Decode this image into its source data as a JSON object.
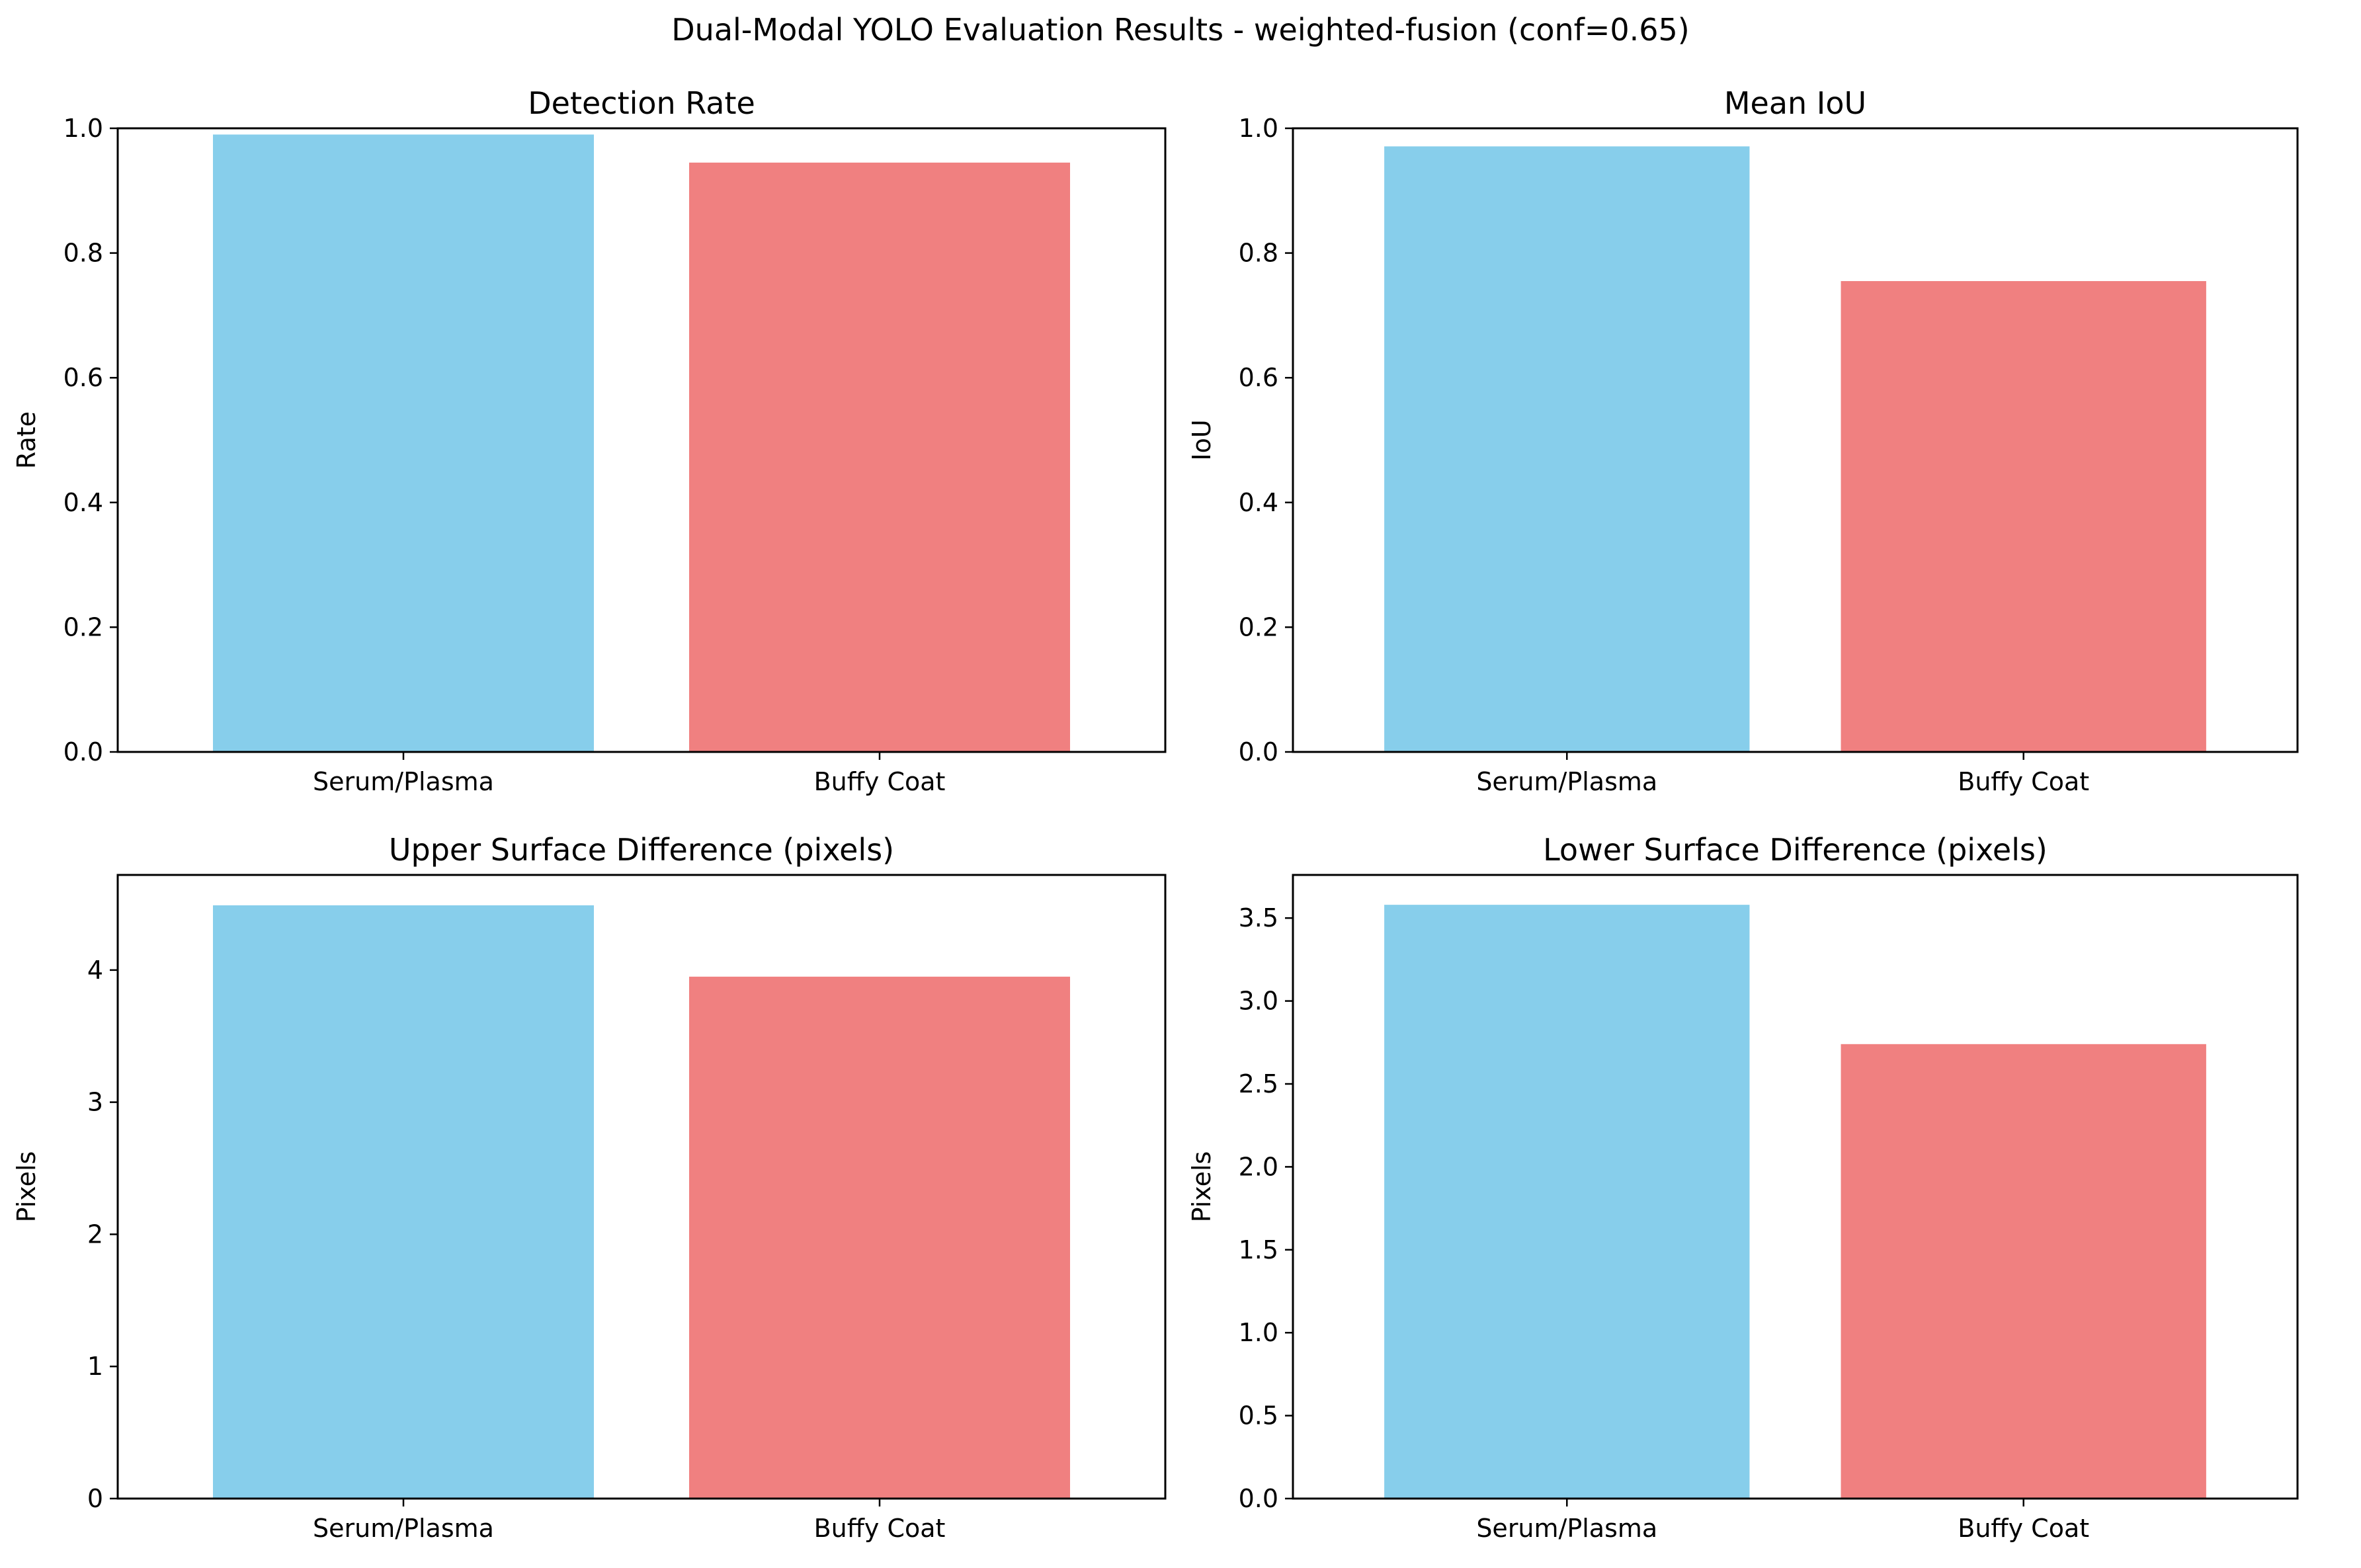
{
  "figure": {
    "title": "Dual-Modal YOLO Evaluation Results - weighted-fusion (conf=0.65)"
  },
  "colors": {
    "serum": "#87CEEB",
    "buffy": "#F08080",
    "axis": "#000000"
  },
  "chart_data": [
    {
      "type": "bar",
      "title": "Detection Rate",
      "ylabel": "Rate",
      "xlabel": "",
      "categories": [
        "Serum/Plasma",
        "Buffy Coat"
      ],
      "values": [
        0.99,
        0.945
      ],
      "ylim": [
        0,
        1.0
      ],
      "yticks": [
        0.0,
        0.2,
        0.4,
        0.6,
        0.8,
        1.0
      ],
      "ytick_labels": [
        "0.0",
        "0.2",
        "0.4",
        "0.6",
        "0.8",
        "1.0"
      ],
      "grid": false
    },
    {
      "type": "bar",
      "title": "Mean IoU",
      "ylabel": "IoU",
      "xlabel": "",
      "categories": [
        "Serum/Plasma",
        "Buffy Coat"
      ],
      "values": [
        0.971,
        0.755
      ],
      "ylim": [
        0,
        1.0
      ],
      "yticks": [
        0.0,
        0.2,
        0.4,
        0.6,
        0.8,
        1.0
      ],
      "ytick_labels": [
        "0.0",
        "0.2",
        "0.4",
        "0.6",
        "0.8",
        "1.0"
      ],
      "grid": false
    },
    {
      "type": "bar",
      "title": "Upper Surface Difference (pixels)",
      "ylabel": "Pixels",
      "xlabel": "",
      "categories": [
        "Serum/Plasma",
        "Buffy Coat"
      ],
      "values": [
        4.49,
        3.95
      ],
      "ylim": [
        0,
        4.72
      ],
      "yticks": [
        0,
        1,
        2,
        3,
        4
      ],
      "ytick_labels": [
        "0",
        "1",
        "2",
        "3",
        "4"
      ],
      "grid": false
    },
    {
      "type": "bar",
      "title": "Lower Surface Difference (pixels)",
      "ylabel": "Pixels",
      "xlabel": "",
      "categories": [
        "Serum/Plasma",
        "Buffy Coat"
      ],
      "values": [
        3.58,
        2.74
      ],
      "ylim": [
        0,
        3.76
      ],
      "yticks": [
        0.0,
        0.5,
        1.0,
        1.5,
        2.0,
        2.5,
        3.0,
        3.5
      ],
      "ytick_labels": [
        "0.0",
        "0.5",
        "1.0",
        "1.5",
        "2.0",
        "2.5",
        "3.0",
        "3.5"
      ],
      "grid": false
    }
  ]
}
